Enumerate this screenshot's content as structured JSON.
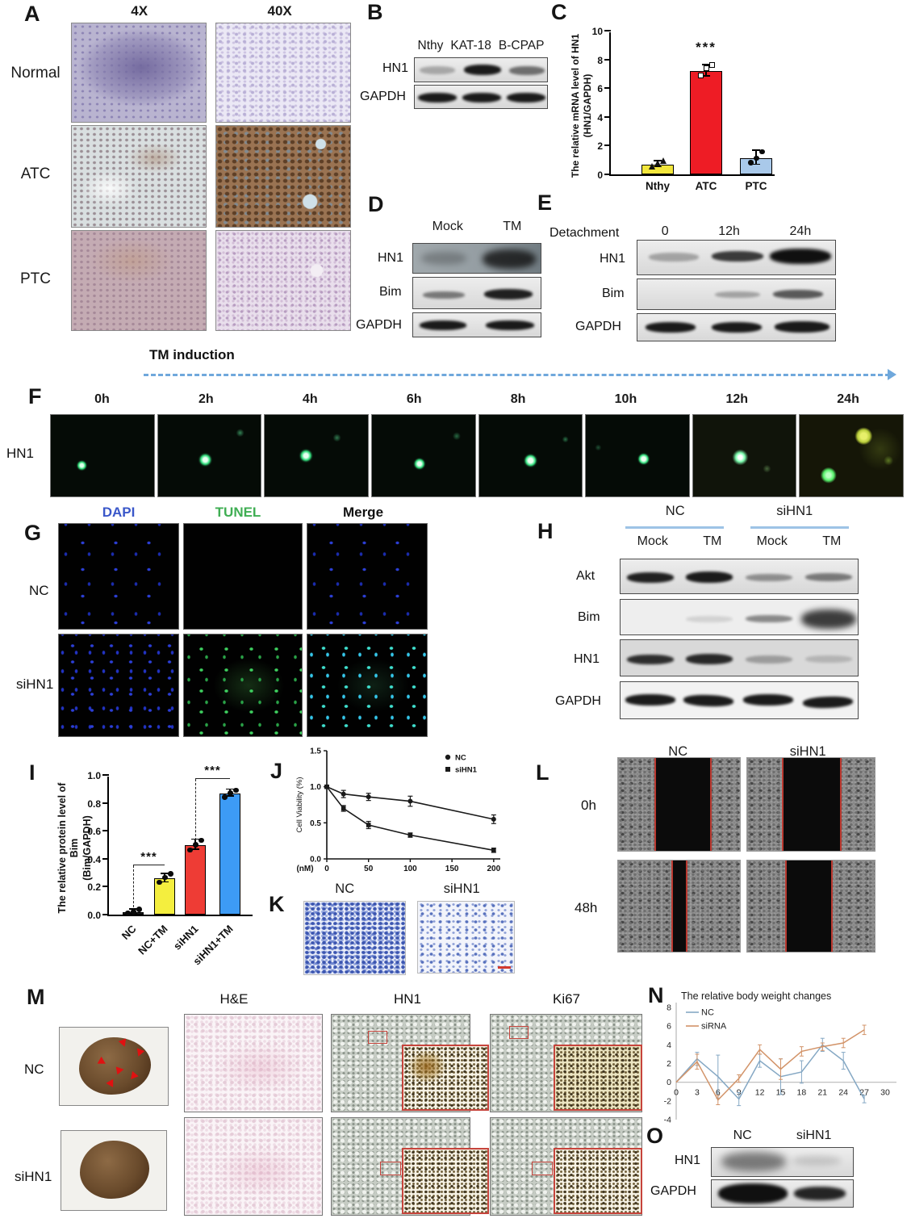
{
  "panels": {
    "a": {
      "label": "A",
      "col_headers": [
        "4X",
        "40X"
      ],
      "row_labels": [
        "Normal",
        "ATC",
        "PTC"
      ]
    },
    "b": {
      "label": "B",
      "lanes": [
        "Nthy",
        "KAT-18",
        "B-CPAP"
      ],
      "rows": [
        "HN1",
        "GAPDH"
      ]
    },
    "c": {
      "label": "C"
    },
    "d": {
      "label": "D",
      "lanes": [
        "Mock",
        "TM"
      ],
      "rows": [
        "HN1",
        "Bim",
        "GAPDH"
      ]
    },
    "e": {
      "label": "E",
      "header": "Detachment",
      "lanes": [
        "0",
        "12h",
        "24h"
      ],
      "rows": [
        "HN1",
        "Bim",
        "GAPDH"
      ]
    },
    "f": {
      "label": "F",
      "induction_label": "TM induction",
      "times": [
        "0h",
        "2h",
        "4h",
        "6h",
        "8h",
        "10h",
        "12h",
        "24h"
      ],
      "row_label": "HN1"
    },
    "g": {
      "label": "G",
      "col_headers": [
        "DAPI",
        "TUNEL",
        "Merge"
      ],
      "row_labels": [
        "NC",
        "siHN1"
      ],
      "header_colors": {
        "dapi": "#3a57c9",
        "tunel": "#3fae53",
        "merge": "#111111"
      }
    },
    "h": {
      "label": "H",
      "groups": [
        "NC",
        "siHN1"
      ],
      "lanes": [
        "Mock",
        "TM",
        "Mock",
        "TM"
      ],
      "rows": [
        "Akt",
        "Bim",
        "HN1",
        "GAPDH"
      ]
    },
    "i": {
      "label": "I"
    },
    "j": {
      "label": "J"
    },
    "k": {
      "label": "K",
      "col_headers": [
        "NC",
        "siHN1"
      ]
    },
    "l": {
      "label": "L",
      "col_headers": [
        "NC",
        "siHN1"
      ],
      "row_labels": [
        "0h",
        "48h"
      ]
    },
    "m": {
      "label": "M",
      "col_headers": [
        "H&E",
        "HN1",
        "Ki67"
      ],
      "row_labels": [
        "NC",
        "siHN1"
      ]
    },
    "n": {
      "label": "N"
    },
    "o": {
      "label": "O",
      "lanes": [
        "NC",
        "siHN1"
      ],
      "rows": [
        "HN1",
        "GAPDH"
      ]
    }
  },
  "chart_data": [
    {
      "id": "c",
      "type": "bar",
      "ylabel_line1": "The relative mRNA level of HN1",
      "ylabel_line2": "(HN1/GAPDH)",
      "categories": [
        "Nthy",
        "ATC",
        "PTC"
      ],
      "values": [
        0.7,
        7.2,
        1.15
      ],
      "errors": [
        0.2,
        0.4,
        0.5
      ],
      "colors": [
        "#f2e63c",
        "#ee1c25",
        "#a9c9ea"
      ],
      "ylim": [
        0,
        10
      ],
      "yticks": [
        0,
        2,
        4,
        6,
        8,
        10
      ],
      "points": [
        [
          0.5,
          0.72,
          0.9
        ],
        [
          6.9,
          7.4,
          7.6
        ],
        [
          0.8,
          1.1,
          1.55
        ]
      ],
      "point_markers": [
        "triangle",
        "square",
        "circle"
      ],
      "sig": [
        {
          "bar": 1,
          "text": "***"
        }
      ]
    },
    {
      "id": "i",
      "type": "bar",
      "ylabel_line1": "The relative protein level of Bim",
      "ylabel_line2": "(Bim/GAPDH)",
      "categories": [
        "NC",
        "NC+TM",
        "siHN1",
        "siHN1+TM"
      ],
      "values": [
        0.02,
        0.26,
        0.5,
        0.87
      ],
      "errors": [
        0.015,
        0.03,
        0.035,
        0.025
      ],
      "colors": [
        "#1a1a1a",
        "#f4ee3e",
        "#ee3c35",
        "#3d9bf5"
      ],
      "ylim": [
        0,
        1
      ],
      "yticks": [
        "0.0",
        "0.2",
        "0.4",
        "0.6",
        "0.8",
        "1.0"
      ],
      "points": [
        [
          0.01,
          0.02,
          0.035
        ],
        [
          0.23,
          0.265,
          0.29
        ],
        [
          0.46,
          0.5,
          0.53
        ],
        [
          0.84,
          0.87,
          0.89
        ]
      ],
      "point_markers": [
        "dot",
        "dot",
        "dot",
        "dot"
      ],
      "sig": [
        {
          "from": 0,
          "to": 1,
          "level": 0.35,
          "text": "***"
        },
        {
          "from": 2,
          "to": 3,
          "level": 0.97,
          "text": "***"
        }
      ]
    },
    {
      "id": "j",
      "type": "line",
      "ylabel": "Cell Viability (%)",
      "xlabel": "(nM)",
      "xlim": [
        0,
        205
      ],
      "ylim": [
        0,
        1.5
      ],
      "xticks": [
        0,
        50,
        100,
        150,
        200
      ],
      "yticks": [
        "0.0",
        "0.5",
        "1.0",
        "1.5"
      ],
      "legend_position": "top-right",
      "series": [
        {
          "name": "NC",
          "marker": "circle",
          "color": "#1a1a1a",
          "x": [
            0,
            20,
            50,
            100,
            200
          ],
          "y": [
            1.0,
            0.9,
            0.86,
            0.8,
            0.55
          ],
          "yerr": [
            0.02,
            0.05,
            0.05,
            0.07,
            0.06
          ]
        },
        {
          "name": "siHN1",
          "marker": "square",
          "color": "#1a1a1a",
          "x": [
            0,
            20,
            50,
            100,
            200
          ],
          "y": [
            1.0,
            0.7,
            0.47,
            0.33,
            0.12
          ],
          "yerr": [
            0.02,
            0.04,
            0.05,
            0.03,
            0.03
          ]
        }
      ]
    },
    {
      "id": "n",
      "type": "line",
      "title": "The relative body weight changes",
      "xlim": [
        0,
        30
      ],
      "ylim": [
        -4,
        8
      ],
      "xticks": [
        0,
        3,
        6,
        9,
        12,
        15,
        18,
        21,
        24,
        27,
        30
      ],
      "yticks": [
        -4,
        -2,
        0,
        2,
        4,
        6,
        8
      ],
      "legend_position": "top-left",
      "series": [
        {
          "name": "NC",
          "color": "#85a8c4",
          "x": [
            0,
            3,
            6,
            9,
            12,
            15,
            18,
            21,
            24,
            27
          ],
          "y": [
            0,
            2.5,
            0.6,
            -1.8,
            2.3,
            0.6,
            1.1,
            4.0,
            2.3,
            -1.8
          ],
          "yerr": [
            0.1,
            0.7,
            2.3,
            0.7,
            0.7,
            1.9,
            1.2,
            0.7,
            0.9,
            0.4
          ]
        },
        {
          "name": "siRNA",
          "color": "#d29368",
          "x": [
            0,
            3,
            6,
            9,
            12,
            15,
            18,
            21,
            24,
            27
          ],
          "y": [
            0,
            2.2,
            -1.9,
            0.4,
            3.5,
            1.4,
            3.3,
            3.8,
            4.2,
            5.6
          ],
          "yerr": [
            0.1,
            0.8,
            0.5,
            0.4,
            0.5,
            1.1,
            0.5,
            0.4,
            0.5,
            0.5
          ]
        }
      ]
    }
  ]
}
